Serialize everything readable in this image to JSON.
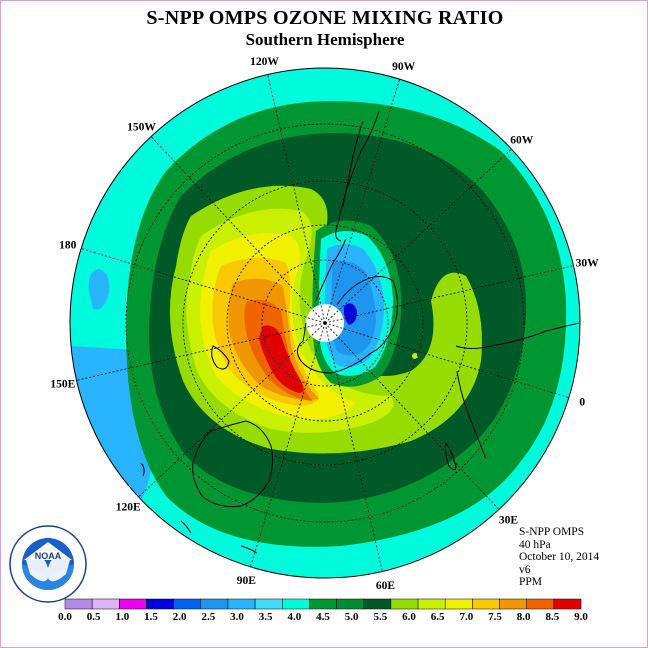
{
  "title": "S-NPP OMPS OZONE MIXING RATIO",
  "subtitle": "Southern Hemisphere",
  "info": {
    "instrument": "S-NPP OMPS",
    "level": "40 hPa",
    "date": "October 10, 2014",
    "version": "v6",
    "units": "PPM"
  },
  "logo": {
    "text": "NOAA",
    "ring_text": "NATIONAL OCEANIC AND ATMOSPHERIC ADMINISTRATION · U.S. DEPARTMENT OF COMMERCE"
  },
  "meridian_labels": [
    "90W",
    "60W",
    "30W",
    "0",
    "30E",
    "60E",
    "90E",
    "120E",
    "150E",
    "180",
    "150W",
    "120W"
  ],
  "colorbar": {
    "ticks": [
      "0.0",
      "0.5",
      "1.0",
      "1.5",
      "2.0",
      "2.5",
      "3.0",
      "3.5",
      "4.0",
      "4.5",
      "5.0",
      "5.5",
      "6.0",
      "6.5",
      "7.0",
      "7.5",
      "8.0",
      "8.5",
      "9.0"
    ],
    "colors": [
      "#b48ce8",
      "#dcb4f4",
      "#f000f0",
      "#0000e0",
      "#0064f0",
      "#1e96f0",
      "#28b4ff",
      "#40dcf8",
      "#00fadc",
      "#009632",
      "#008c32",
      "#005a28",
      "#96dc00",
      "#c8f000",
      "#f0f000",
      "#f8c800",
      "#f09600",
      "#f06400",
      "#e00000",
      "#6e4628"
    ]
  },
  "colors": {
    "background": "#ffffff",
    "frame_border": "#d8a0d8",
    "coastline": "#000000",
    "grid": "#000000"
  }
}
